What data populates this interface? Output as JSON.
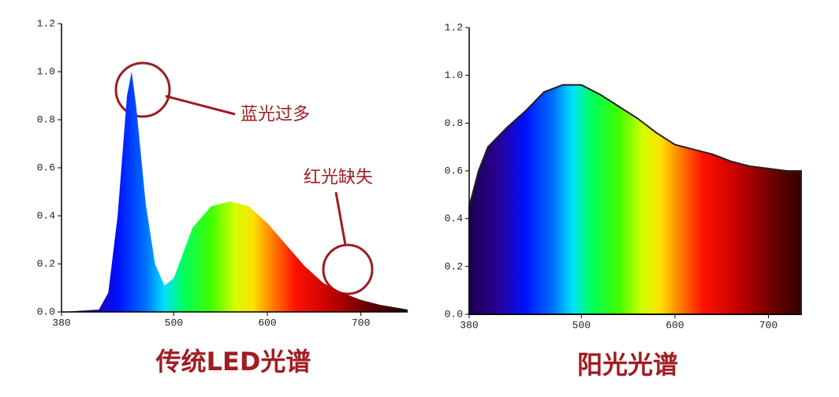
{
  "chart_data": [
    {
      "type": "area",
      "title": "传统LED光谱",
      "x": [
        380,
        420,
        430,
        440,
        450,
        455,
        460,
        470,
        480,
        490,
        500,
        520,
        540,
        560,
        580,
        600,
        620,
        640,
        660,
        680,
        700,
        720,
        750
      ],
      "values": [
        0,
        0.01,
        0.08,
        0.4,
        0.9,
        1.0,
        0.85,
        0.45,
        0.2,
        0.11,
        0.14,
        0.35,
        0.44,
        0.46,
        0.44,
        0.37,
        0.28,
        0.19,
        0.12,
        0.08,
        0.05,
        0.03,
        0.01
      ],
      "xlim": [
        380,
        750
      ],
      "xticks": [
        380,
        500,
        600,
        700
      ],
      "ylim": [
        0,
        1.2
      ],
      "yticks": [
        {
          "value": 0,
          "label": "0.0"
        },
        0.2,
        0.4,
        0.6,
        0.8,
        {
          "value": 1,
          "label": "1.0"
        },
        1.2
      ],
      "annotations": [
        "蓝光过多",
        "红光缺失"
      ]
    },
    {
      "type": "area",
      "title": "阳光光谱",
      "x": [
        380,
        390,
        400,
        420,
        440,
        460,
        480,
        500,
        520,
        540,
        560,
        580,
        600,
        620,
        640,
        660,
        680,
        700,
        720,
        735
      ],
      "values": [
        0.45,
        0.6,
        0.7,
        0.78,
        0.85,
        0.93,
        0.96,
        0.96,
        0.92,
        0.87,
        0.82,
        0.76,
        0.71,
        0.69,
        0.67,
        0.64,
        0.62,
        0.61,
        0.6,
        0.6
      ],
      "xlim": [
        380,
        735
      ],
      "xticks": [
        380,
        500,
        600,
        700
      ],
      "ylim": [
        0,
        1.2
      ],
      "yticks": [
        {
          "value": 0,
          "label": "0.0"
        },
        0.2,
        0.4,
        0.6,
        0.8,
        {
          "value": 1,
          "label": "1.0"
        },
        1.2
      ],
      "color": "#222222"
    }
  ]
}
